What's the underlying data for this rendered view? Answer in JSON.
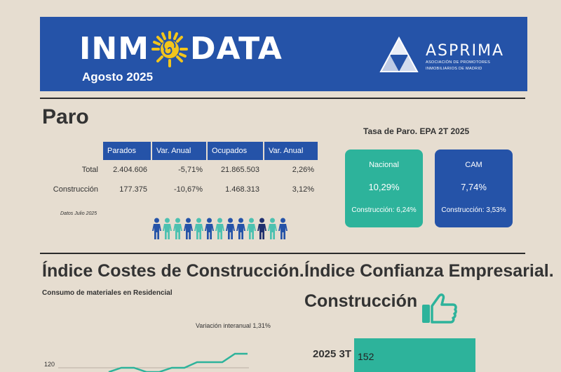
{
  "header": {
    "brand_left": "INM",
    "brand_right": "DATA",
    "edition": "Agosto 2025",
    "partner_name": "ASPRIMA",
    "partner_sub_1": "ASOCIACIÓN DE PROMOTORES",
    "partner_sub_2": "INMOBILIARIOS DE MADRID"
  },
  "paro": {
    "title": "Paro",
    "columns": [
      "Parados",
      "Var. Anual",
      "Ocupados",
      "Var. Anual"
    ],
    "rows": [
      {
        "label": "Total",
        "values": [
          "2.404.606",
          "-5,71%",
          "21.865.503",
          "2,26%"
        ]
      },
      {
        "label": "Construcción",
        "values": [
          "177.375",
          "-10,67%",
          "1.468.313",
          "3,12%"
        ]
      }
    ],
    "note": "Datos Julio 2025",
    "figures": [
      "#2553a8",
      "#4cc1b0",
      "#4cc1b0",
      "#2553a8",
      "#4cc1b0",
      "#2553a8",
      "#4cc1b0",
      "#2553a8",
      "#2553a8",
      "#4cc1b0",
      "#1f2f6e",
      "#4cc1b0",
      "#2553a8"
    ]
  },
  "tasa": {
    "title": "Tasa de Paro. EPA 2T 2025",
    "cards": [
      {
        "name": "Nacional",
        "value": "10,29%",
        "construction": "Construcción: 6,24%",
        "color": "#2db39b"
      },
      {
        "name": "CAM",
        "value": "7,74%",
        "construction": "Construcción: 3,53%",
        "color": "#2553a8"
      }
    ]
  },
  "costes": {
    "title": "Índice Costes de Construcción.",
    "subtitle": "Consumo de materiales en Residencial",
    "variation": "Variación interanual 1,31%",
    "y_tick": "120"
  },
  "confianza": {
    "title_line1": "Índice Confianza Empresarial.",
    "title_line2": "Construcción",
    "bar_label": "2025 3T",
    "bar_value": "152"
  }
}
